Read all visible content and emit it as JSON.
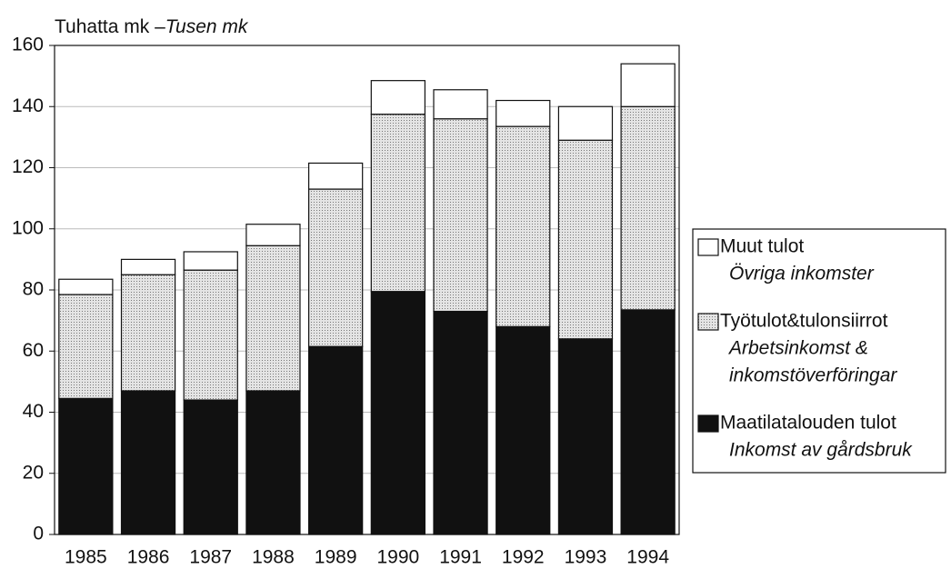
{
  "chart_data": {
    "type": "stacked_bar",
    "y_label": "Tuhatta mk –",
    "y_label_sv": "Tusen mk",
    "categories": [
      "1985",
      "1986",
      "1987",
      "1988",
      "1989",
      "1990",
      "1991",
      "1992",
      "1993",
      "1994"
    ],
    "series": [
      {
        "name": "Maatilatalouden tulot",
        "name_sv": [
          "Inkomst av gårdsbruk"
        ],
        "color": "#111111",
        "values": [
          44.5,
          47,
          44,
          47,
          61.5,
          79.5,
          73,
          68,
          64,
          73.5
        ]
      },
      {
        "name": "Työtulot&tulonsiirrot",
        "name_sv": [
          "Arbetsinkomst &",
          "inkomstöverföringar"
        ],
        "color": "#c8c8c8",
        "values": [
          34,
          38,
          42.5,
          47.5,
          51.5,
          58,
          63,
          65.5,
          65,
          66.5
        ]
      },
      {
        "name": "Muut tulot",
        "name_sv": [
          "Övriga inkomster"
        ],
        "color": "#ffffff",
        "values": [
          5,
          5,
          6,
          7,
          8.5,
          11,
          9.5,
          8.5,
          11,
          14
        ]
      }
    ],
    "ylim": [
      0,
      160
    ],
    "yticks": [
      0,
      20,
      40,
      60,
      80,
      100,
      120,
      140,
      160
    ],
    "grid": true
  }
}
